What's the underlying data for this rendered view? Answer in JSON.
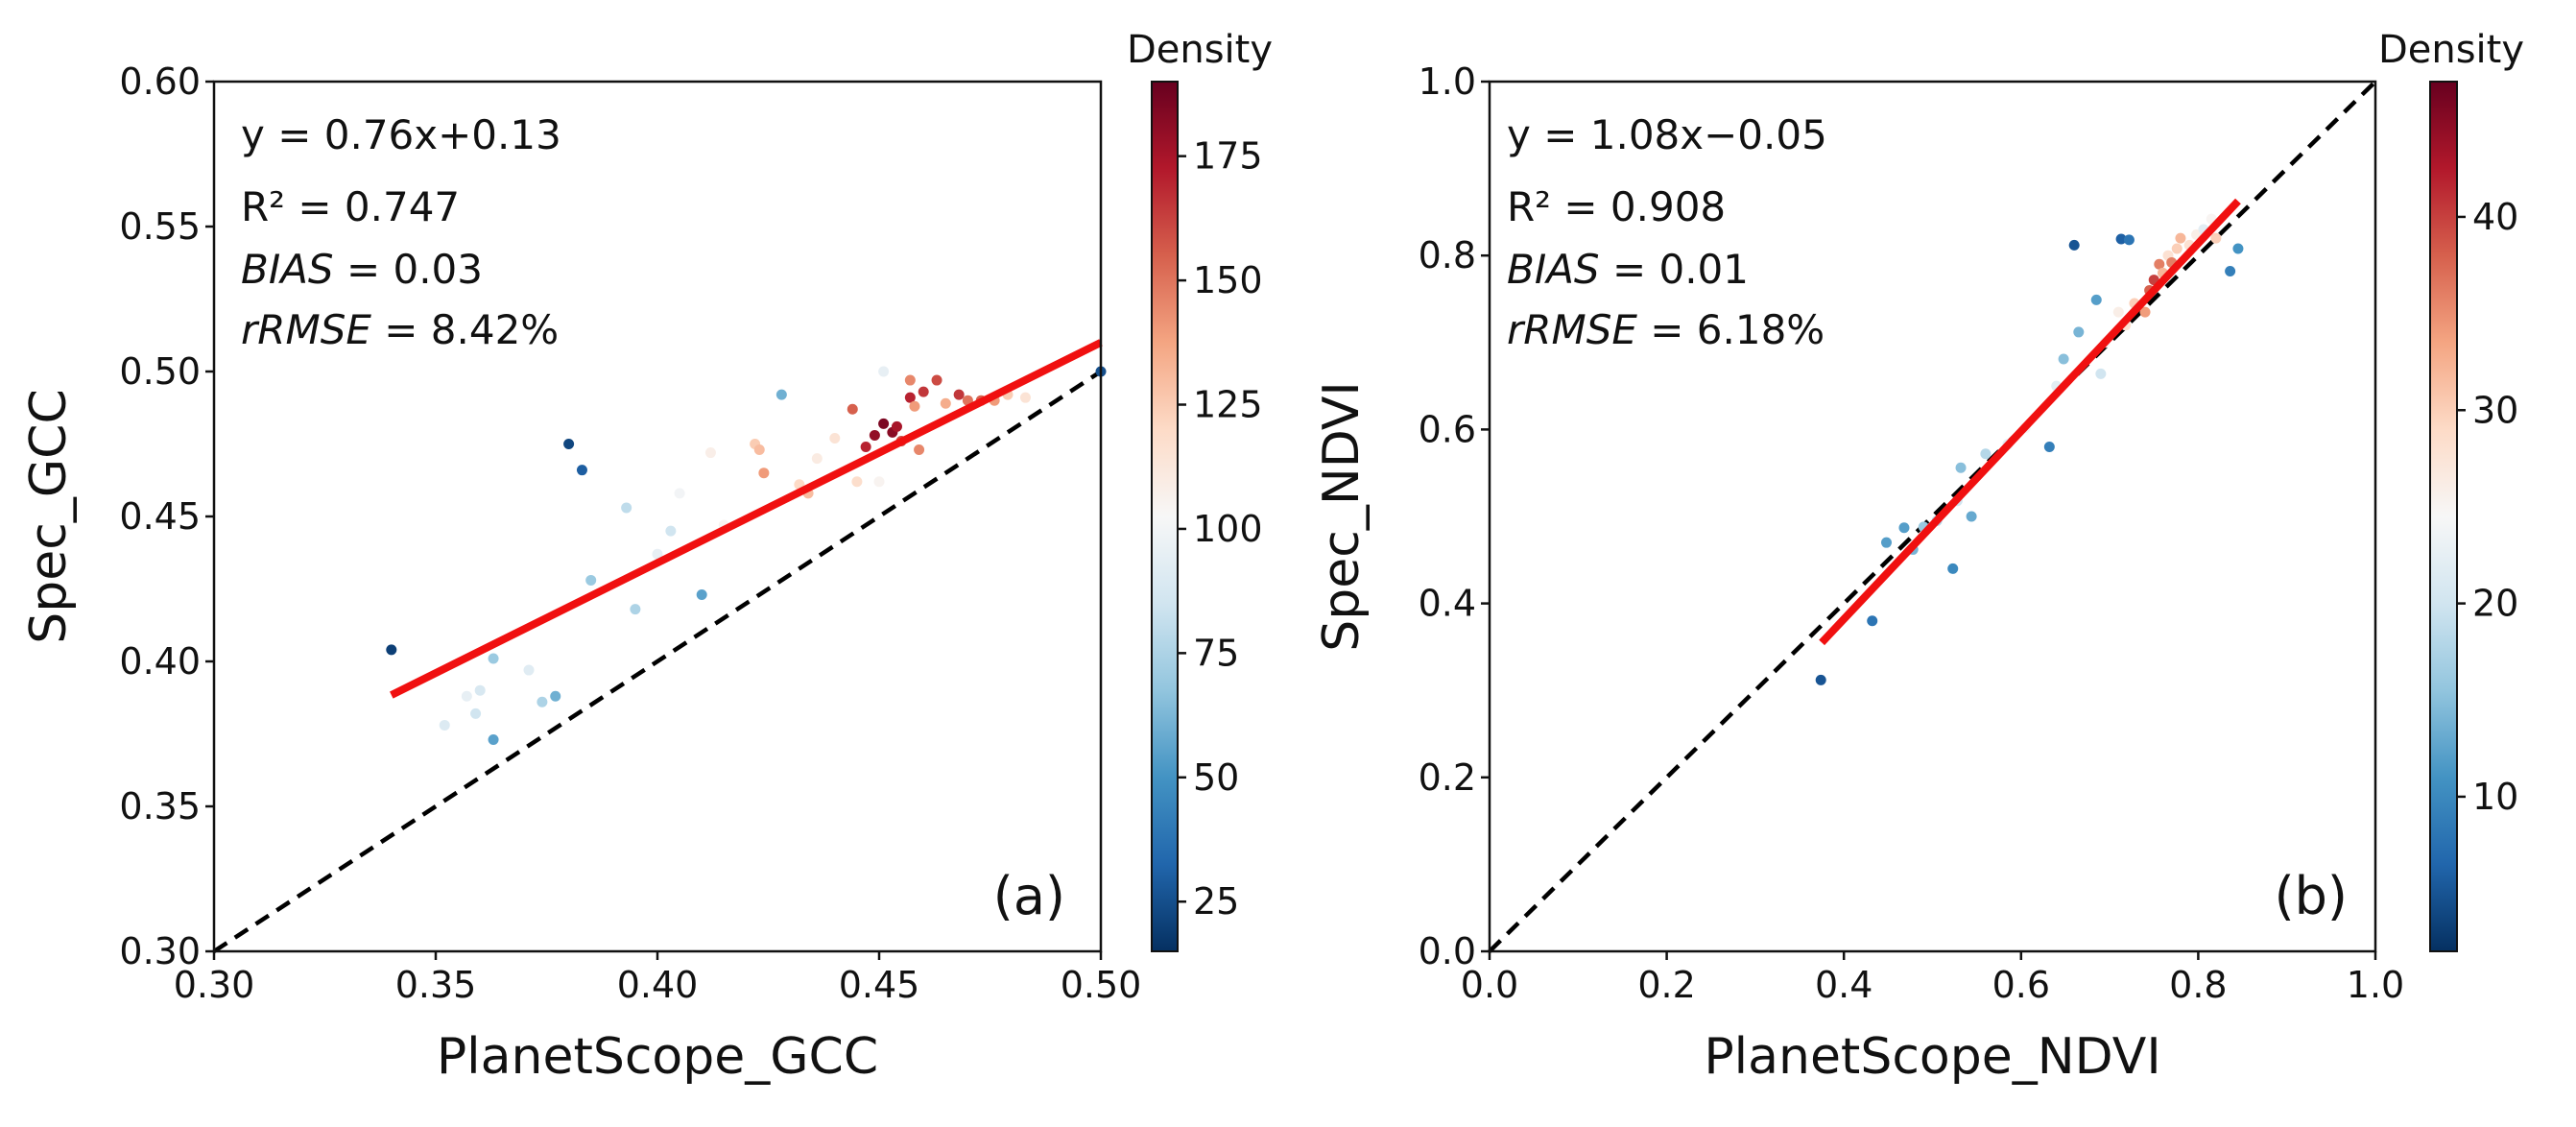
{
  "chart_data": [
    {
      "type": "scatter",
      "panel_label": "(a)",
      "xlabel": "PlanetScope_GCC",
      "ylabel": "Spec_GCC",
      "xlim": [
        0.3,
        0.5
      ],
      "ylim": [
        0.3,
        0.6
      ],
      "xticks": [
        "0.30",
        "0.35",
        "0.40",
        "0.45",
        "0.50"
      ],
      "yticks": [
        "0.30",
        "0.35",
        "0.40",
        "0.45",
        "0.50",
        "0.55",
        "0.60"
      ],
      "annotation": {
        "equation": "y = 0.76x+0.13",
        "r2": "R² = 0.747",
        "bias_label": "BIAS",
        "bias_value": " = 0.03",
        "rrmse_label": "rRMSE",
        "rrmse_value": " = 8.42%"
      },
      "regression": {
        "slope": 0.76,
        "intercept": 0.13,
        "x_range": [
          0.34,
          0.5
        ]
      },
      "identity_line": {
        "x_range": [
          0.3,
          0.5
        ]
      },
      "colorbar": {
        "title": "Density",
        "range": [
          15,
          190
        ],
        "ticks": [
          "25",
          "50",
          "75",
          "100",
          "125",
          "150",
          "175"
        ],
        "colors": [
          "#053061",
          "#2166ac",
          "#4393c3",
          "#92c5de",
          "#d1e5f0",
          "#f7f7f7",
          "#fddbc7",
          "#f4a582",
          "#d6604d",
          "#b2182b",
          "#67001f"
        ]
      },
      "points": [
        {
          "x": 0.34,
          "y": 0.404,
          "d": 20
        },
        {
          "x": 0.352,
          "y": 0.378,
          "d": 90
        },
        {
          "x": 0.357,
          "y": 0.388,
          "d": 95
        },
        {
          "x": 0.359,
          "y": 0.382,
          "d": 85
        },
        {
          "x": 0.36,
          "y": 0.39,
          "d": 88
        },
        {
          "x": 0.363,
          "y": 0.401,
          "d": 70
        },
        {
          "x": 0.363,
          "y": 0.373,
          "d": 55
        },
        {
          "x": 0.371,
          "y": 0.397,
          "d": 92
        },
        {
          "x": 0.374,
          "y": 0.386,
          "d": 75
        },
        {
          "x": 0.377,
          "y": 0.388,
          "d": 60
        },
        {
          "x": 0.38,
          "y": 0.475,
          "d": 22
        },
        {
          "x": 0.383,
          "y": 0.466,
          "d": 30
        },
        {
          "x": 0.385,
          "y": 0.428,
          "d": 70
        },
        {
          "x": 0.393,
          "y": 0.453,
          "d": 80
        },
        {
          "x": 0.395,
          "y": 0.418,
          "d": 75
        },
        {
          "x": 0.4,
          "y": 0.437,
          "d": 95
        },
        {
          "x": 0.403,
          "y": 0.445,
          "d": 85
        },
        {
          "x": 0.405,
          "y": 0.458,
          "d": 100
        },
        {
          "x": 0.41,
          "y": 0.423,
          "d": 55
        },
        {
          "x": 0.412,
          "y": 0.472,
          "d": 108
        },
        {
          "x": 0.415,
          "y": 0.447,
          "d": 105
        },
        {
          "x": 0.422,
          "y": 0.475,
          "d": 125
        },
        {
          "x": 0.423,
          "y": 0.473,
          "d": 130
        },
        {
          "x": 0.424,
          "y": 0.465,
          "d": 140
        },
        {
          "x": 0.428,
          "y": 0.492,
          "d": 60
        },
        {
          "x": 0.432,
          "y": 0.461,
          "d": 120
        },
        {
          "x": 0.434,
          "y": 0.458,
          "d": 130
        },
        {
          "x": 0.436,
          "y": 0.47,
          "d": 110
        },
        {
          "x": 0.44,
          "y": 0.477,
          "d": 115
        },
        {
          "x": 0.444,
          "y": 0.487,
          "d": 155
        },
        {
          "x": 0.445,
          "y": 0.462,
          "d": 118
        },
        {
          "x": 0.447,
          "y": 0.474,
          "d": 170
        },
        {
          "x": 0.449,
          "y": 0.478,
          "d": 180
        },
        {
          "x": 0.45,
          "y": 0.462,
          "d": 105
        },
        {
          "x": 0.451,
          "y": 0.482,
          "d": 185
        },
        {
          "x": 0.451,
          "y": 0.5,
          "d": 95
        },
        {
          "x": 0.453,
          "y": 0.479,
          "d": 182
        },
        {
          "x": 0.454,
          "y": 0.481,
          "d": 175
        },
        {
          "x": 0.455,
          "y": 0.476,
          "d": 160
        },
        {
          "x": 0.457,
          "y": 0.491,
          "d": 170
        },
        {
          "x": 0.457,
          "y": 0.497,
          "d": 145
        },
        {
          "x": 0.458,
          "y": 0.488,
          "d": 140
        },
        {
          "x": 0.459,
          "y": 0.473,
          "d": 145
        },
        {
          "x": 0.46,
          "y": 0.493,
          "d": 165
        },
        {
          "x": 0.463,
          "y": 0.497,
          "d": 160
        },
        {
          "x": 0.465,
          "y": 0.489,
          "d": 135
        },
        {
          "x": 0.468,
          "y": 0.492,
          "d": 165
        },
        {
          "x": 0.47,
          "y": 0.49,
          "d": 150
        },
        {
          "x": 0.473,
          "y": 0.49,
          "d": 155
        },
        {
          "x": 0.476,
          "y": 0.49,
          "d": 140
        },
        {
          "x": 0.479,
          "y": 0.492,
          "d": 125
        },
        {
          "x": 0.483,
          "y": 0.491,
          "d": 115
        },
        {
          "x": 0.5,
          "y": 0.5,
          "d": 25
        }
      ]
    },
    {
      "type": "scatter",
      "panel_label": "(b)",
      "xlabel": "PlanetScope_NDVI",
      "ylabel": "Spec_NDVI",
      "xlim": [
        0.0,
        1.0
      ],
      "ylim": [
        0.0,
        1.0
      ],
      "xticks": [
        "0.0",
        "0.2",
        "0.4",
        "0.6",
        "0.8",
        "1.0"
      ],
      "yticks": [
        "0.0",
        "0.2",
        "0.4",
        "0.6",
        "0.8",
        "1.0"
      ],
      "annotation": {
        "equation": "y = 1.08x−0.05",
        "r2": "R² = 0.908",
        "bias_label": "BIAS",
        "bias_value": " = 0.01",
        "rrmse_label": "rRMSE",
        "rrmse_value": " = 6.18%"
      },
      "regression": {
        "slope": 1.08,
        "intercept": -0.05,
        "x_range": [
          0.375,
          0.845
        ]
      },
      "identity_line": {
        "x_range": [
          0.0,
          1.0
        ]
      },
      "colorbar": {
        "title": "Density",
        "range": [
          2,
          47
        ],
        "ticks": [
          "10",
          "20",
          "30",
          "40"
        ],
        "colors": [
          "#053061",
          "#2166ac",
          "#4393c3",
          "#92c5de",
          "#d1e5f0",
          "#f7f7f7",
          "#fddbc7",
          "#f4a582",
          "#d6604d",
          "#b2182b",
          "#67001f"
        ]
      },
      "points": [
        {
          "x": 0.374,
          "y": 0.312,
          "d": 5
        },
        {
          "x": 0.432,
          "y": 0.38,
          "d": 8
        },
        {
          "x": 0.448,
          "y": 0.47,
          "d": 12
        },
        {
          "x": 0.468,
          "y": 0.487,
          "d": 12
        },
        {
          "x": 0.478,
          "y": 0.462,
          "d": 14
        },
        {
          "x": 0.49,
          "y": 0.488,
          "d": 16
        },
        {
          "x": 0.505,
          "y": 0.495,
          "d": 18
        },
        {
          "x": 0.523,
          "y": 0.44,
          "d": 10
        },
        {
          "x": 0.528,
          "y": 0.518,
          "d": 20
        },
        {
          "x": 0.532,
          "y": 0.556,
          "d": 15
        },
        {
          "x": 0.544,
          "y": 0.5,
          "d": 13
        },
        {
          "x": 0.56,
          "y": 0.572,
          "d": 18
        },
        {
          "x": 0.585,
          "y": 0.583,
          "d": 22
        },
        {
          "x": 0.605,
          "y": 0.602,
          "d": 24
        },
        {
          "x": 0.632,
          "y": 0.58,
          "d": 9
        },
        {
          "x": 0.64,
          "y": 0.65,
          "d": 22
        },
        {
          "x": 0.648,
          "y": 0.681,
          "d": 15
        },
        {
          "x": 0.66,
          "y": 0.812,
          "d": 5
        },
        {
          "x": 0.665,
          "y": 0.712,
          "d": 14
        },
        {
          "x": 0.685,
          "y": 0.749,
          "d": 12
        },
        {
          "x": 0.69,
          "y": 0.664,
          "d": 20
        },
        {
          "x": 0.695,
          "y": 0.7,
          "d": 24
        },
        {
          "x": 0.71,
          "y": 0.735,
          "d": 26
        },
        {
          "x": 0.713,
          "y": 0.819,
          "d": 6
        },
        {
          "x": 0.718,
          "y": 0.72,
          "d": 28
        },
        {
          "x": 0.722,
          "y": 0.818,
          "d": 8
        },
        {
          "x": 0.728,
          "y": 0.745,
          "d": 30
        },
        {
          "x": 0.74,
          "y": 0.735,
          "d": 34
        },
        {
          "x": 0.745,
          "y": 0.76,
          "d": 38
        },
        {
          "x": 0.75,
          "y": 0.772,
          "d": 40
        },
        {
          "x": 0.756,
          "y": 0.79,
          "d": 36
        },
        {
          "x": 0.76,
          "y": 0.78,
          "d": 32
        },
        {
          "x": 0.766,
          "y": 0.8,
          "d": 28
        },
        {
          "x": 0.77,
          "y": 0.792,
          "d": 36
        },
        {
          "x": 0.776,
          "y": 0.808,
          "d": 30
        },
        {
          "x": 0.78,
          "y": 0.82,
          "d": 32
        },
        {
          "x": 0.79,
          "y": 0.812,
          "d": 28
        },
        {
          "x": 0.798,
          "y": 0.824,
          "d": 26
        },
        {
          "x": 0.806,
          "y": 0.83,
          "d": 22
        },
        {
          "x": 0.815,
          "y": 0.842,
          "d": 25
        },
        {
          "x": 0.82,
          "y": 0.82,
          "d": 30
        },
        {
          "x": 0.836,
          "y": 0.782,
          "d": 9
        },
        {
          "x": 0.845,
          "y": 0.808,
          "d": 11
        }
      ]
    }
  ]
}
